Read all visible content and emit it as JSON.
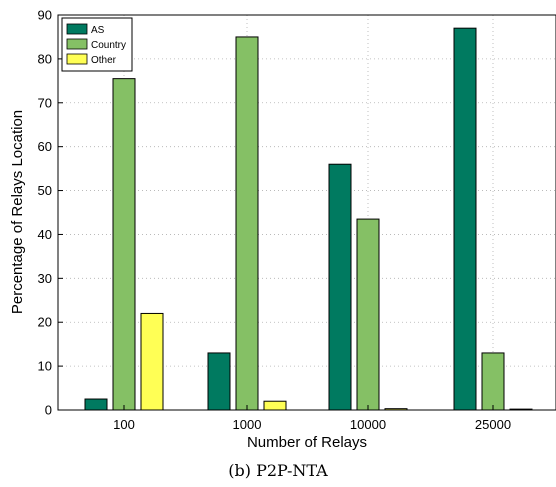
{
  "chart_data": {
    "type": "bar",
    "xlabel": "Number of Relays",
    "ylabel": "Percentage of Relays Location",
    "caption": "(b) P2P-NTA",
    "categories": [
      "100",
      "1000",
      "10000",
      "25000"
    ],
    "ylim": [
      0,
      90
    ],
    "yticks": [
      0,
      10,
      20,
      30,
      40,
      50,
      60,
      70,
      80,
      90
    ],
    "grid": true,
    "legend_position": "top-left",
    "series": [
      {
        "name": "AS",
        "color": "#007a60",
        "values": [
          2.5,
          13,
          56,
          87
        ]
      },
      {
        "name": "Country",
        "color": "#85c065",
        "values": [
          75.5,
          85,
          43.5,
          13
        ]
      },
      {
        "name": "Other",
        "color": "#ffff55",
        "values": [
          22,
          2,
          0.3,
          0.2
        ]
      }
    ]
  }
}
